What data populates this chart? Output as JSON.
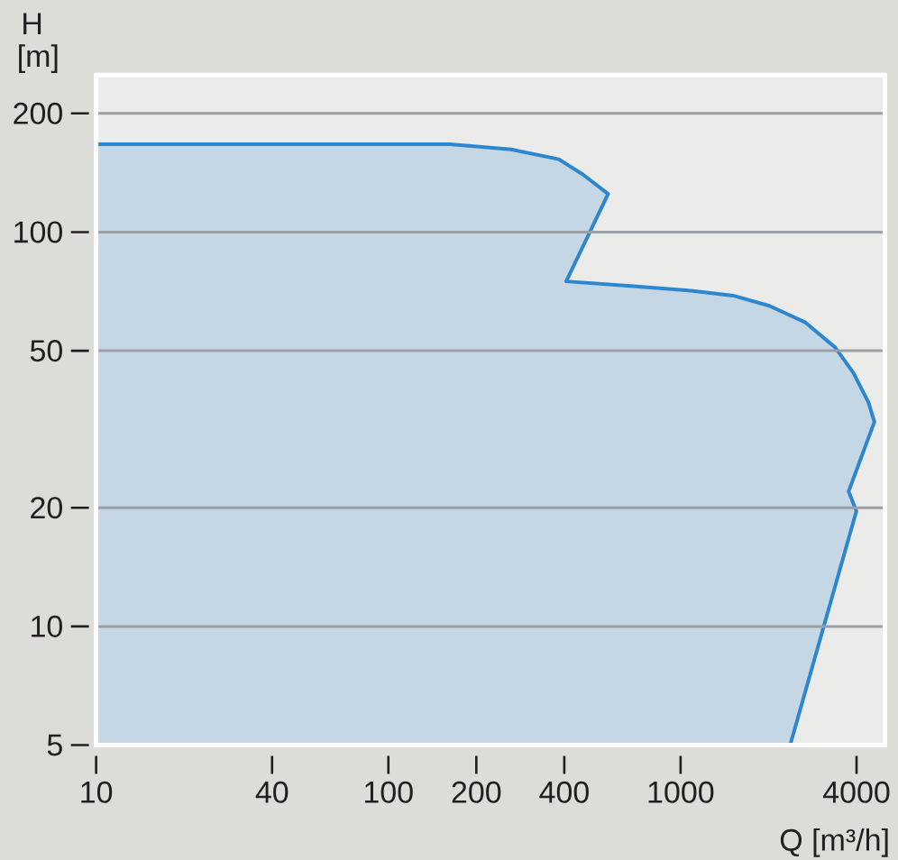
{
  "chart_data": {
    "type": "area",
    "xlabel": "Q [m³/h]",
    "ylabel": "H [m]",
    "log": "xy",
    "xlim": [
      10,
      5000
    ],
    "ylim": [
      5,
      250
    ],
    "xticks": [
      10,
      40,
      100,
      200,
      400,
      1000,
      4000
    ],
    "yticks": [
      5,
      10,
      20,
      50,
      100,
      200
    ],
    "grid": "y",
    "series": [
      {
        "color": "#2e86cf",
        "x": [
          10,
          163,
          263,
          383,
          463,
          565,
          406,
          676,
          1086,
          1514,
          2012,
          2673,
          3381,
          3899,
          4395,
          4604,
          3758,
          3996,
          2371
        ],
        "values": [
          167,
          167,
          162,
          153,
          140,
          125,
          75,
          73,
          71,
          69,
          65,
          59,
          51,
          44,
          37,
          33,
          22,
          19.6,
          5
        ]
      }
    ]
  }
}
